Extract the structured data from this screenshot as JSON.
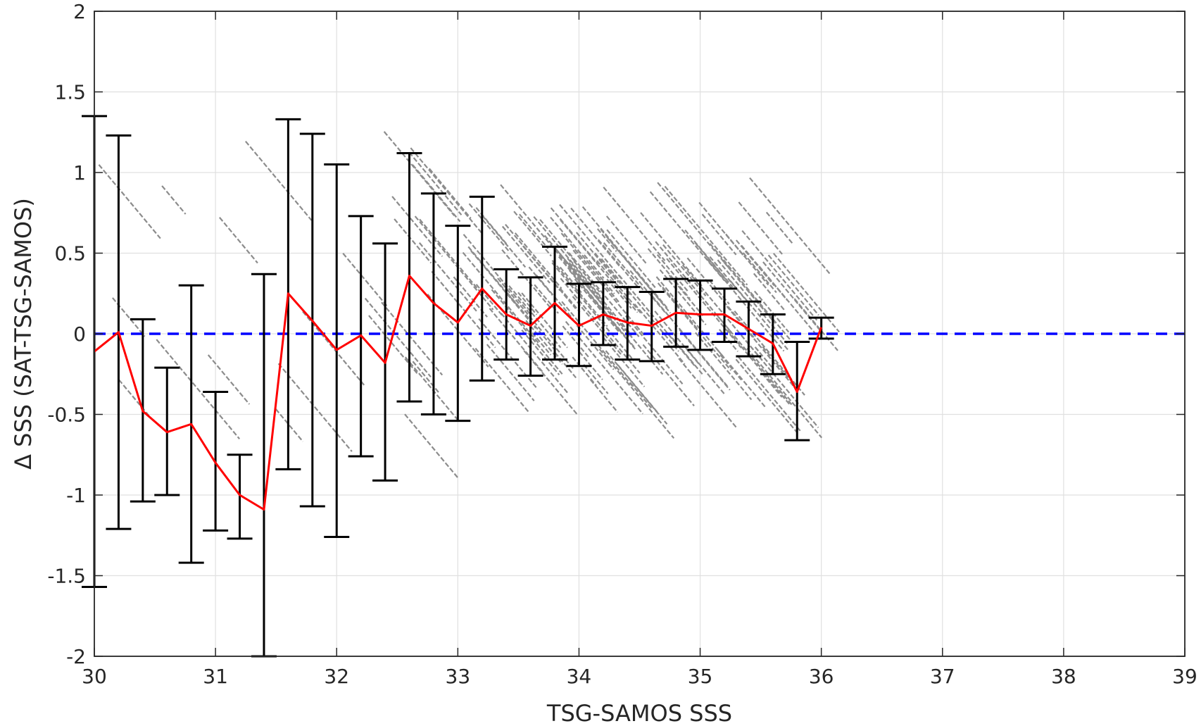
{
  "chart_data": {
    "type": "scatter",
    "title": "",
    "xlabel": "TSG-SAMOS SSS",
    "ylabel": "Δ SSS (SAT-TSG-SAMOS)",
    "xlim": [
      30,
      39
    ],
    "ylim": [
      -2,
      2
    ],
    "xticks": [
      "30",
      "31",
      "32",
      "33",
      "34",
      "35",
      "36",
      "37",
      "38",
      "39"
    ],
    "yticks": [
      "-2",
      "-1.5",
      "-1",
      "-0.5",
      "0",
      "0.5",
      "1",
      "1.5",
      "2"
    ],
    "grid": true,
    "colors": {
      "scatter": "#8c8c8c",
      "mean_line": "#ff0000",
      "error_bars": "#000000",
      "zero_line": "#0000ff",
      "grid": "#e0e0e0",
      "axes": "#262626"
    },
    "reference_line": {
      "y": 0,
      "style": "dashed"
    },
    "binned_mean": {
      "x": [
        30.0,
        30.2,
        30.4,
        30.6,
        30.8,
        31.0,
        31.2,
        31.4,
        31.6,
        31.8,
        32.0,
        32.2,
        32.4,
        32.6,
        32.8,
        33.0,
        33.2,
        33.4,
        33.6,
        33.8,
        34.0,
        34.2,
        34.4,
        34.6,
        34.8,
        35.0,
        35.2,
        35.4,
        35.6,
        35.8,
        36.0
      ],
      "y": [
        -0.11,
        0.01,
        -0.48,
        -0.61,
        -0.56,
        -0.8,
        -1.0,
        -1.09,
        0.25,
        0.08,
        -0.1,
        -0.01,
        -0.18,
        0.36,
        0.19,
        0.07,
        0.28,
        0.12,
        0.05,
        0.19,
        0.05,
        0.12,
        0.07,
        0.05,
        0.13,
        0.12,
        0.12,
        0.03,
        -0.06,
        -0.36,
        0.04
      ],
      "low": [
        -1.57,
        -1.21,
        -1.04,
        -1.0,
        -1.42,
        -1.22,
        -1.27,
        -2.0,
        -0.84,
        -1.07,
        -1.26,
        -0.76,
        -0.91,
        -0.42,
        -0.5,
        -0.54,
        -0.29,
        -0.16,
        -0.26,
        -0.16,
        -0.2,
        -0.07,
        -0.16,
        -0.17,
        -0.08,
        -0.1,
        -0.05,
        -0.14,
        -0.25,
        -0.66,
        -0.03
      ],
      "high": [
        1.35,
        1.23,
        0.09,
        -0.21,
        0.3,
        -0.36,
        -0.75,
        0.37,
        1.33,
        1.24,
        1.05,
        0.73,
        0.56,
        1.12,
        0.87,
        0.67,
        0.85,
        0.4,
        0.35,
        0.54,
        0.31,
        0.32,
        0.29,
        0.26,
        0.34,
        0.33,
        0.28,
        0.2,
        0.12,
        -0.05,
        0.1
      ]
    }
  }
}
